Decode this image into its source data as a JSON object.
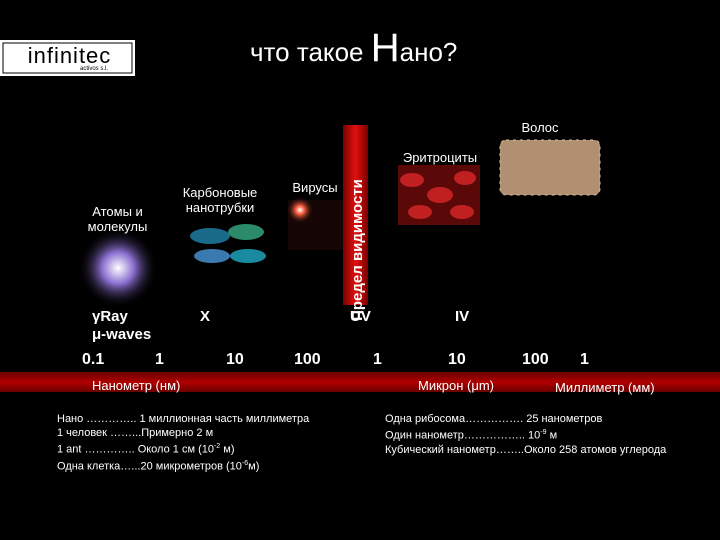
{
  "logo": {
    "name": "infinitec",
    "subtitle": "activos s.l."
  },
  "title": [
    "что такое ",
    "Н",
    "ано?"
  ],
  "objects": {
    "hair": "Волос",
    "erythrocytes": "Эритроциты",
    "viruses": "Вирусы",
    "nanotubes": "Карбоновые нанотрубки",
    "atoms": "Атомы и молекулы",
    "visibility": "Предел видимости"
  },
  "bands": [
    "γRay",
    "μ-waves",
    "X",
    "UV",
    "IV"
  ],
  "scale": [
    "0.1",
    "1",
    "10",
    "100",
    "1",
    "10",
    "100",
    "1"
  ],
  "units": [
    "Нанометр (нм)",
    "Микрон (μm)",
    "Миллиметр (мм)"
  ],
  "notes_left": [
    {
      "text": "Нано ………….. 1 миллионная часть миллиметра"
    },
    {
      "text": "1 человек ……...Примерно 2 м"
    },
    {
      "text": "1 ant  ………….. Около 1 см (10",
      "sup": "-2",
      "tail": " м)"
    },
    {
      "text": "Одна клетка…...20 микрометров (10",
      "sup": "-6",
      "tail": "м)"
    }
  ],
  "notes_right": [
    {
      "text": "Одна рибосома……………. 25 нанометров"
    },
    {
      "text": "Один нанометр…………….. 10",
      "sup": "-9",
      "tail": " м"
    },
    {
      "text": "Кубический нанометр……..Около 258 атомов углерода"
    }
  ]
}
